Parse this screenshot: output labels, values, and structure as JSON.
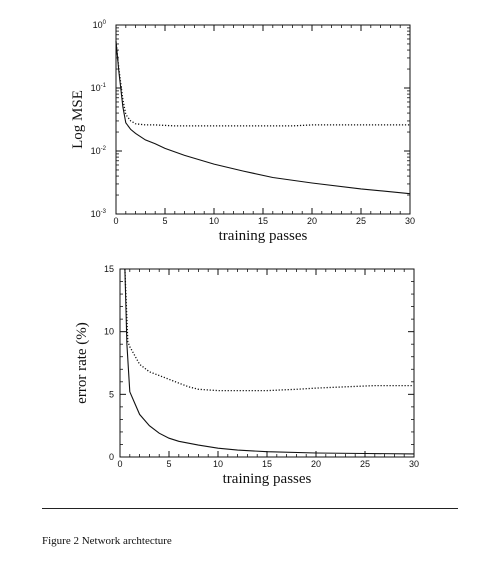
{
  "chart_data": [
    {
      "type": "line",
      "ylabel": "Log MSE",
      "xlabel": "training passes",
      "xlim": [
        0,
        30
      ],
      "ylim": [
        0.001,
        1
      ],
      "yscale": "log",
      "x_ticks": [
        "0",
        "5",
        "10",
        "15",
        "20",
        "25",
        "30"
      ],
      "y_ticks": [
        {
          "base": "10",
          "exp": "0"
        },
        {
          "base": "10",
          "exp": "-1"
        },
        {
          "base": "10",
          "exp": "-2"
        },
        {
          "base": "10",
          "exp": "-3"
        }
      ],
      "series": [
        {
          "style": "solid",
          "x": [
            0,
            0.3,
            0.7,
            1,
            1.5,
            2,
            3,
            4,
            5,
            7,
            10,
            13,
            16,
            20,
            25,
            30
          ],
          "y": [
            0.55,
            0.18,
            0.05,
            0.028,
            0.022,
            0.019,
            0.015,
            0.013,
            0.011,
            0.0085,
            0.0062,
            0.0048,
            0.0038,
            0.0031,
            0.0025,
            0.0021
          ]
        },
        {
          "style": "dotted",
          "x": [
            0,
            0.3,
            0.7,
            1,
            1.5,
            2,
            3,
            4,
            6,
            8,
            10,
            12,
            15,
            18,
            20,
            22,
            25,
            28,
            30
          ],
          "y": [
            0.55,
            0.2,
            0.065,
            0.038,
            0.03,
            0.027,
            0.026,
            0.026,
            0.025,
            0.025,
            0.025,
            0.025,
            0.025,
            0.025,
            0.026,
            0.026,
            0.026,
            0.026,
            0.026
          ]
        }
      ]
    },
    {
      "type": "line",
      "ylabel": "error rate (%)",
      "xlabel": "training passes",
      "xlim": [
        0,
        30
      ],
      "ylim": [
        0,
        15
      ],
      "x_ticks": [
        "0",
        "5",
        "10",
        "15",
        "20",
        "25",
        "30"
      ],
      "y_ticks": [
        "0",
        "5",
        "10",
        "15"
      ],
      "series": [
        {
          "style": "solid",
          "x": [
            0.5,
            0.7,
            1,
            1.5,
            2,
            3,
            4,
            5,
            6,
            8,
            10,
            12,
            15,
            20,
            25,
            30
          ],
          "y": [
            15,
            9,
            5.2,
            4.3,
            3.4,
            2.5,
            1.9,
            1.5,
            1.25,
            0.95,
            0.7,
            0.55,
            0.42,
            0.32,
            0.28,
            0.25
          ]
        },
        {
          "style": "dotted",
          "x": [
            0.5,
            0.8,
            1,
            1.5,
            2,
            3,
            4,
            5,
            6,
            7,
            8,
            10,
            12,
            15,
            18,
            20,
            23,
            26,
            28,
            30
          ],
          "y": [
            15,
            9.2,
            8.8,
            8.1,
            7.4,
            6.8,
            6.5,
            6.2,
            5.9,
            5.6,
            5.4,
            5.3,
            5.3,
            5.3,
            5.4,
            5.5,
            5.6,
            5.7,
            5.7,
            5.7
          ]
        }
      ]
    }
  ],
  "figure": {
    "caption": "Figure 2  Network archtecture"
  }
}
